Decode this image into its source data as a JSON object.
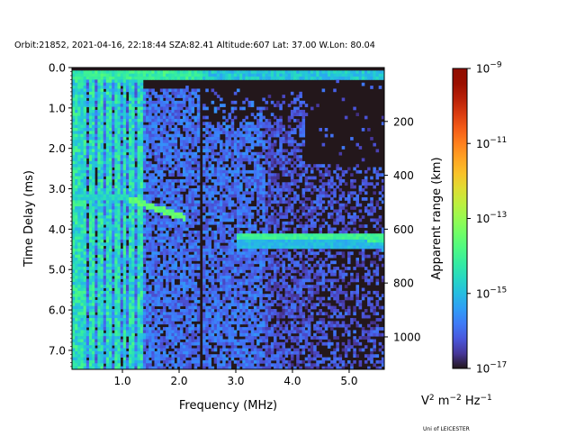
{
  "chart_data": {
    "type": "heatmap",
    "title": "Orbit:21852, 2021-04-16, 22:18:44 SZA:82.41 Altitude:607 Lat: 37.00 W.Lon: 80.04",
    "xlabel": "Frequency (MHz)",
    "ylabel": "Time Delay (ms)",
    "y2label": "Apparent range (km)",
    "xlim": [
      0.11,
      5.62
    ],
    "ylim": [
      7.47,
      0.0
    ],
    "xticks": [
      {
        "v": 1.0,
        "label": "1.0"
      },
      {
        "v": 2.0,
        "label": "2.0"
      },
      {
        "v": 3.0,
        "label": "3.0"
      },
      {
        "v": 4.0,
        "label": "4.0"
      },
      {
        "v": 5.0,
        "label": "5.0"
      }
    ],
    "yticks": [
      {
        "v": 0,
        "label": "0.0"
      },
      {
        "v": 1,
        "label": "1.0"
      },
      {
        "v": 2,
        "label": "2.0"
      },
      {
        "v": 3,
        "label": "3.0"
      },
      {
        "v": 4,
        "label": "4.0"
      },
      {
        "v": 5,
        "label": "5.0"
      },
      {
        "v": 6,
        "label": "6.0"
      },
      {
        "v": 7,
        "label": "7.0"
      }
    ],
    "y2_km_per_ms": 150,
    "y2ticks": [
      {
        "v": 200,
        "label": "200"
      },
      {
        "v": 400,
        "label": "400"
      },
      {
        "v": 600,
        "label": "600"
      },
      {
        "v": 800,
        "label": "800"
      },
      {
        "v": 1000,
        "label": "1000"
      }
    ],
    "colorbar": {
      "scale": "log",
      "range_log10": [
        -17,
        -9
      ],
      "colormap": "turbo",
      "ticks": [
        {
          "v": -9,
          "base": "10",
          "exp": "−9"
        },
        {
          "v": -11,
          "base": "10",
          "exp": "−11"
        },
        {
          "v": -13,
          "base": "10",
          "exp": "−13"
        },
        {
          "v": -15,
          "base": "10",
          "exp": "−15"
        },
        {
          "v": -17,
          "base": "10",
          "exp": "−17"
        }
      ],
      "units": {
        "a": "V",
        "a_exp": "2",
        "b": " m",
        "b_exp": "−2",
        "c": " Hz",
        "c_exp": "−1"
      }
    },
    "grid": {
      "cols": 110,
      "rows": 100
    },
    "features": {
      "background_log10": -17,
      "noise_log10": [
        -16.4,
        -15.5
      ],
      "top_band_ms": [
        0.1,
        0.3
      ],
      "plasma_lines_mhz": [
        0.14,
        0.19,
        0.24,
        0.31,
        0.36,
        0.42,
        0.5,
        0.58,
        0.66,
        0.74,
        0.8,
        0.88,
        0.96,
        1.04,
        1.12,
        1.2,
        1.3,
        1.36
      ],
      "dark_column_mhz": [
        2.34,
        2.42
      ],
      "traces": [
        {
          "name": "echo-low",
          "freq": [
            0.1,
            1.1
          ],
          "delay": [
            3.2,
            3.2
          ],
          "log10": -14.9
        },
        {
          "name": "echo-oblique",
          "freq": [
            1.1,
            2.1
          ],
          "delay": [
            3.25,
            3.72
          ],
          "log10": -13.8
        },
        {
          "name": "surface-echo",
          "freq": [
            3.0,
            5.62
          ],
          "delay": [
            4.18,
            4.22
          ],
          "log10": -14.3
        }
      ]
    }
  },
  "footer": "Uni of LEICESTER"
}
